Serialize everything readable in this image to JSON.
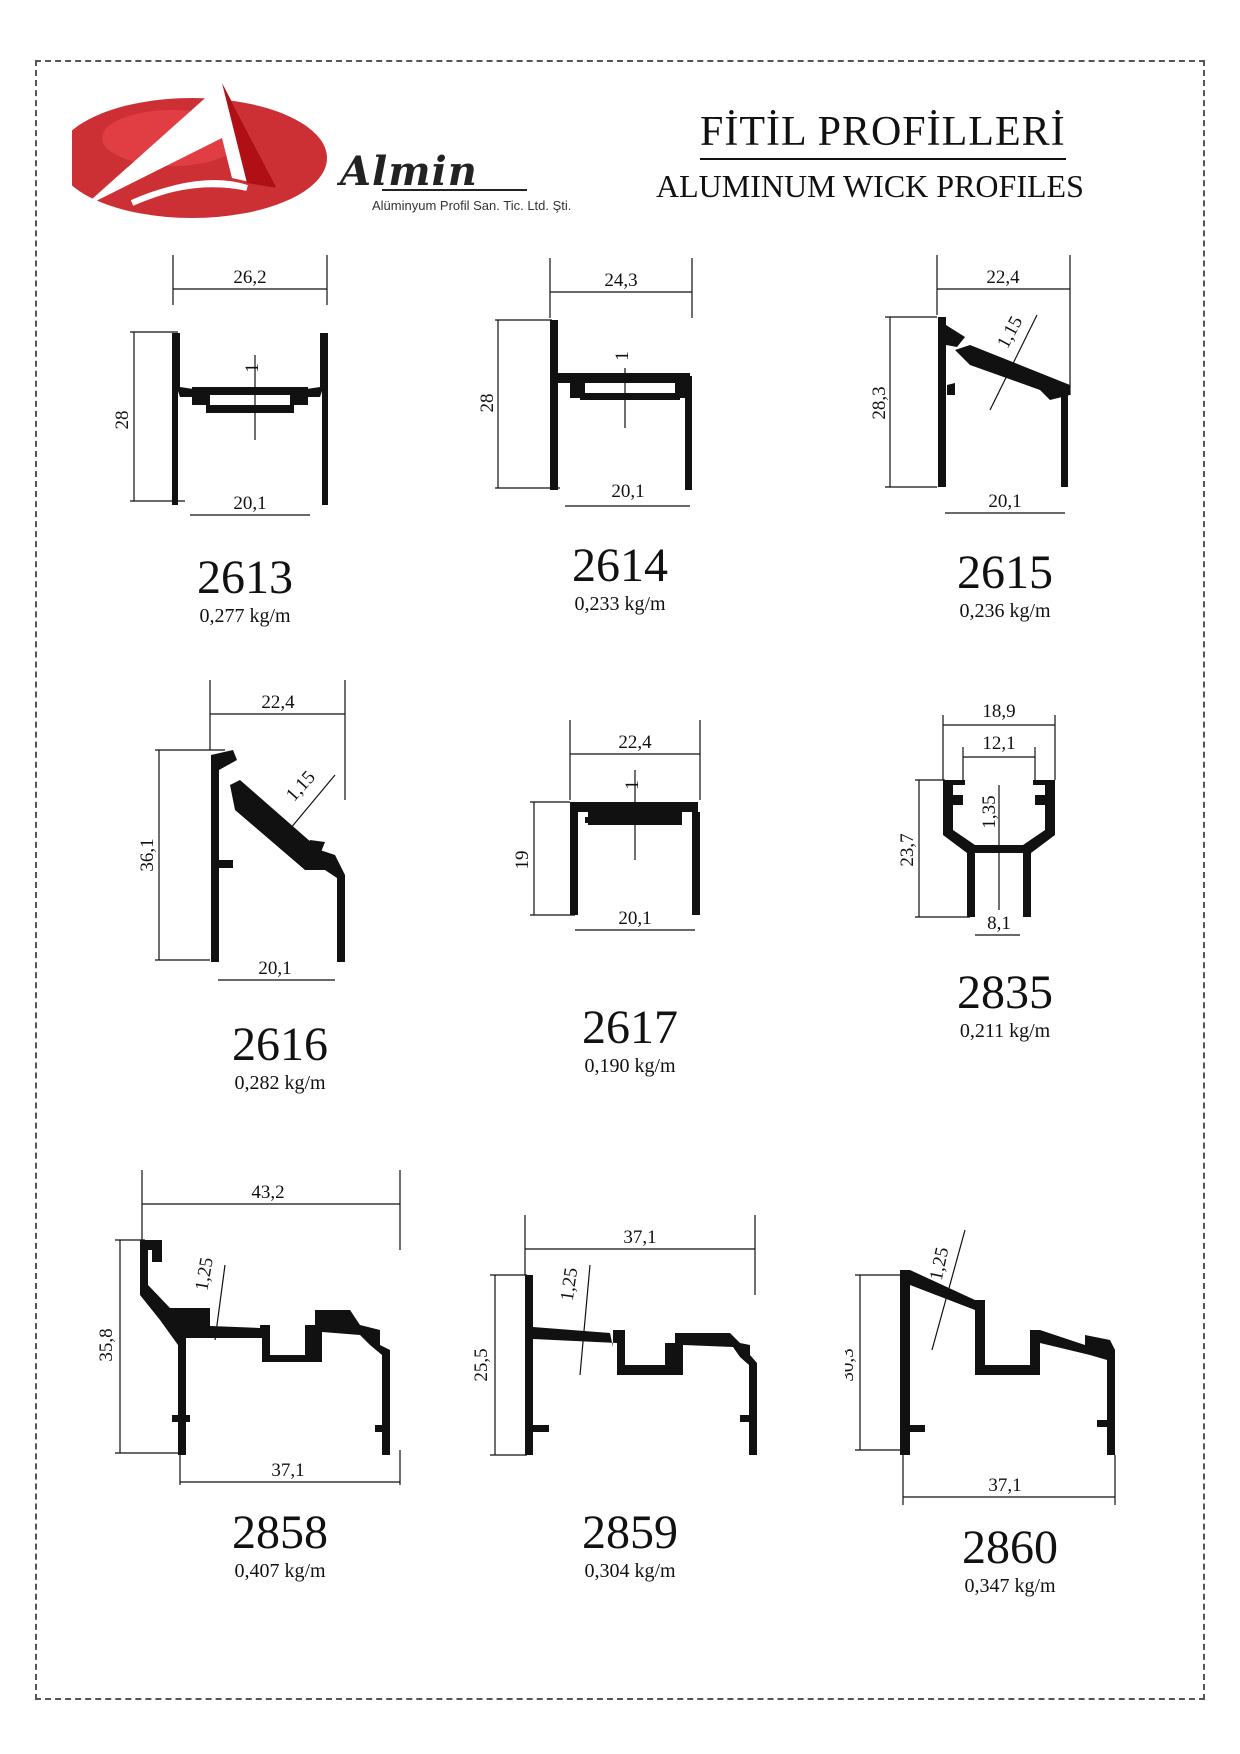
{
  "brand": {
    "name": "Almin",
    "subtitle": "Alüminyum Profil San. Tic. Ltd. Şti.",
    "colors": {
      "red": "#c8191e",
      "dark": "#222222"
    }
  },
  "heading": {
    "title_tr": "FİTİL PROFİLLERİ",
    "title_en": "ALUMINUM WICK PROFILES"
  },
  "profiles": [
    {
      "code": "2613",
      "weight": "0,277 kg/m",
      "dims": [
        "26,2",
        "28",
        "1",
        "20,1"
      ]
    },
    {
      "code": "2614",
      "weight": "0,233 kg/m",
      "dims": [
        "24,3",
        "28",
        "1",
        "20,1"
      ]
    },
    {
      "code": "2615",
      "weight": "0,236 kg/m",
      "dims": [
        "22,4",
        "28,3",
        "1,15",
        "20,1"
      ]
    },
    {
      "code": "2616",
      "weight": "0,282 kg/m",
      "dims": [
        "22,4",
        "36,1",
        "1,15",
        "20,1"
      ]
    },
    {
      "code": "2617",
      "weight": "0,190 kg/m",
      "dims": [
        "22,4",
        "19",
        "1",
        "20,1"
      ]
    },
    {
      "code": "2835",
      "weight": "0,211 kg/m",
      "dims": [
        "18,9",
        "12,1",
        "23,7",
        "1,35",
        "8,1"
      ]
    },
    {
      "code": "2858",
      "weight": "0,407 kg/m",
      "dims": [
        "43,2",
        "35,8",
        "1,25",
        "37,1"
      ]
    },
    {
      "code": "2859",
      "weight": "0,304 kg/m",
      "dims": [
        "37,1",
        "25,5",
        "1,25"
      ]
    },
    {
      "code": "2860",
      "weight": "0,347 kg/m",
      "dims": [
        "1,25",
        "30,3",
        "37,1"
      ]
    }
  ]
}
